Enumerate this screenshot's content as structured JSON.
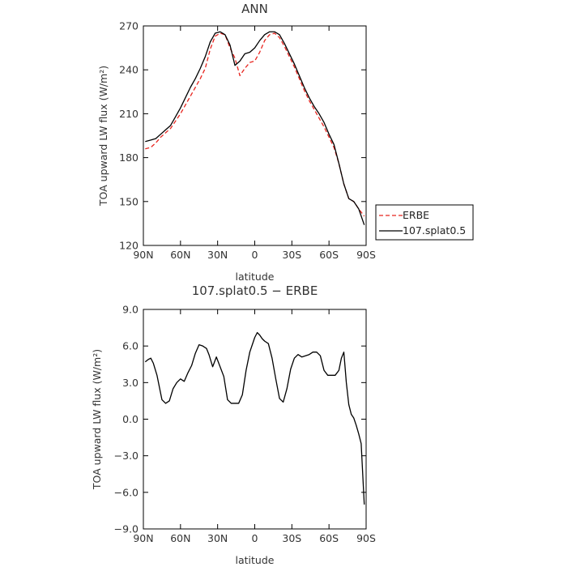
{
  "chart_data": [
    {
      "type": "line",
      "title": "ANN",
      "xlabel": "latitude",
      "ylabel": "TOA upward LW flux (W/m²)",
      "xlim": [
        -90,
        90
      ],
      "ylim": [
        120,
        270
      ],
      "x_ticks": [
        -90,
        -60,
        -30,
        0,
        30,
        60,
        90
      ],
      "x_tick_labels": [
        "90N",
        "60N",
        "30N",
        "0",
        "30S",
        "60S",
        "90S"
      ],
      "y_ticks": [
        120,
        150,
        180,
        210,
        240,
        270
      ],
      "y_tick_labels": [
        "120",
        "150",
        "180",
        "210",
        "240",
        "270"
      ],
      "legend_position": "right",
      "series": [
        {
          "name": "ERBE",
          "color": "#e8251f",
          "dash": "dashed",
          "x": [
            -88.5,
            -84,
            -80,
            -76,
            -72,
            -68,
            -64,
            -60,
            -56,
            -52,
            -48,
            -44,
            -40,
            -36,
            -32,
            -28,
            -24,
            -20,
            -16,
            -12,
            -8,
            -4,
            0,
            4,
            8,
            12,
            16,
            20,
            24,
            28,
            32,
            36,
            40,
            44,
            48,
            52,
            56,
            60,
            64,
            68,
            72,
            76,
            80,
            84,
            88.5
          ],
          "y": [
            186,
            187,
            190,
            194,
            197,
            200,
            205,
            210,
            216,
            222,
            228,
            234,
            241,
            254,
            263,
            265,
            264,
            255,
            248,
            236,
            241,
            245,
            246,
            252,
            260,
            264,
            265,
            262,
            256,
            249,
            242,
            234,
            226,
            219,
            213,
            207,
            201,
            194,
            187,
            176,
            162,
            152,
            150,
            145,
            140
          ]
        },
        {
          "name": "107.splat0.5",
          "color": "#000000",
          "dash": "solid",
          "x": [
            -88.5,
            -84,
            -80,
            -76,
            -72,
            -68,
            -64,
            -60,
            -56,
            -52,
            -48,
            -44,
            -40,
            -36,
            -32,
            -28,
            -24,
            -20,
            -16,
            -12,
            -8,
            -4,
            0,
            4,
            8,
            12,
            16,
            20,
            24,
            28,
            32,
            36,
            40,
            44,
            48,
            52,
            56,
            60,
            64,
            68,
            72,
            76,
            80,
            84,
            88.5
          ],
          "y": [
            191,
            192,
            193,
            196,
            199,
            202,
            208,
            214,
            221,
            228,
            234,
            241,
            249,
            259,
            265,
            266,
            264,
            257,
            243,
            246,
            251,
            252,
            255,
            260,
            264,
            266,
            266,
            264,
            258,
            251,
            244,
            236,
            228,
            221,
            215,
            210,
            204,
            196,
            189,
            176,
            162,
            152,
            150,
            145,
            134
          ]
        }
      ]
    },
    {
      "type": "line",
      "title": "107.splat0.5 − ERBE",
      "xlabel": "latitude",
      "ylabel": "TOA upward LW flux (W/m²)",
      "xlim": [
        -90,
        90
      ],
      "ylim": [
        -9,
        9
      ],
      "x_ticks": [
        -90,
        -60,
        -30,
        0,
        30,
        60,
        90
      ],
      "x_tick_labels": [
        "90N",
        "60N",
        "30N",
        "0",
        "30S",
        "60S",
        "90S"
      ],
      "y_ticks": [
        -9,
        -6,
        -3,
        0,
        3,
        6,
        9
      ],
      "y_tick_labels": [
        "−9.0",
        "−6.0",
        "−3.0",
        "0.0",
        "3.0",
        "6.0",
        "9.0"
      ],
      "series": [
        {
          "color": "#000000",
          "dash": "solid",
          "x": [
            -88.5,
            -86,
            -84,
            -82,
            -79,
            -77,
            -75,
            -72,
            -69,
            -66,
            -63,
            -60,
            -57,
            -54,
            -51,
            -48,
            -45,
            -42,
            -39,
            -37,
            -34,
            -31,
            -28,
            -25,
            -22,
            -19,
            -16,
            -13,
            -10,
            -7,
            -4,
            -1,
            0,
            2,
            4,
            6,
            8,
            11,
            14,
            17,
            20,
            23,
            26,
            29,
            32,
            35,
            38,
            41,
            44,
            47,
            50,
            53,
            56,
            59,
            62,
            65,
            68,
            70,
            72,
            74,
            76,
            78,
            80,
            82,
            84,
            86,
            88.5
          ],
          "y": [
            4.7,
            4.9,
            5.0,
            4.6,
            3.6,
            2.6,
            1.6,
            1.3,
            1.5,
            2.5,
            3.0,
            3.3,
            3.1,
            3.8,
            4.4,
            5.4,
            6.1,
            6.0,
            5.8,
            5.3,
            4.3,
            5.1,
            4.3,
            3.5,
            1.6,
            1.3,
            1.3,
            1.3,
            2.0,
            4.0,
            5.5,
            6.4,
            6.7,
            7.1,
            6.9,
            6.6,
            6.4,
            6.2,
            5.0,
            3.3,
            1.7,
            1.4,
            2.5,
            4.1,
            5.0,
            5.3,
            5.1,
            5.2,
            5.3,
            5.5,
            5.5,
            5.2,
            4.0,
            3.6,
            3.6,
            3.6,
            4.0,
            5.0,
            5.5,
            3.0,
            1.2,
            0.4,
            0.1,
            -0.5,
            -1.2,
            -2.0,
            -7.0
          ]
        }
      ]
    }
  ]
}
